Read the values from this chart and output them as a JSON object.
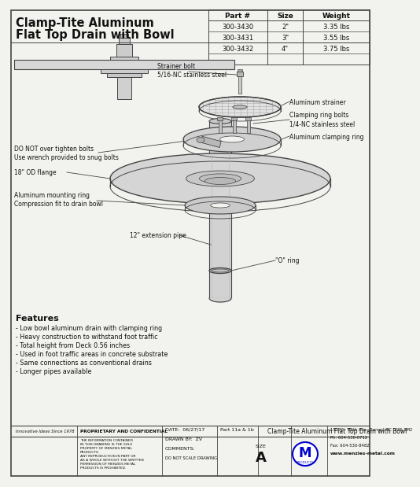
{
  "bg_color": "#f2f2ee",
  "border_color": "#333333",
  "title_line1": "Clamp-Tite Aluminum",
  "title_line2": "Flat Top Drain with Bowl",
  "table_headers": [
    "Part #",
    "Size",
    "Weight"
  ],
  "table_rows": [
    [
      "300-3430",
      "2\"",
      "3.35 lbs"
    ],
    [
      "300-3431",
      "3\"",
      "3.55 lbs"
    ],
    [
      "300-3432",
      "4\"",
      "3.75 lbs"
    ]
  ],
  "features_title": "Features",
  "features": [
    "- Low bowl aluminum drain with clamping ring",
    "- Heavy construction to withstand foot traffic",
    "- Total height from Deck 0.56 inches",
    "- Used in foot traffic areas in concrete substrate",
    "- Same connections as conventional drains",
    "- Longer pipes available"
  ],
  "label_strainer_bolt": "Strainer bolt\n5/16-NC stainless steel",
  "label_al_strainer": "Aluminum strainer",
  "label_clamp_bolts": "Clamping ring bolts\n1/4-NC stainless steel",
  "label_clamp_ring": "Aluminum clamping ring",
  "label_do_not": "DO NOT over tighten bolts\nUse wrench provided to snug bolts",
  "label_flange": "18\" OD flange",
  "label_mount_ring": "Aluminum mounting ring\nCompression fit to drain bowl",
  "label_ext_pipe": "12\" extension pipe",
  "label_o_ring": "\"O\" ring",
  "footer_left1": "Innovative Ideas Since 1978",
  "footer_conf": "PROPRIETARY AND CONFIDENTIAL",
  "footer_conf_body": "THE INFORMATION CONTAINED\nIN THIS DRAWING IS THE SOLE\nPROPERTY OF MENZIES METAL\nPRODUCTS.\nANY REPRODUCTION IN PART OR\nAS A WHOLE WITHOUT THE WRITTEN\nPERMISSION OF MENZIES METAL\nPRODUCTS IS PROHIBITED.",
  "footer_date": "DATE:  06/27/17",
  "footer_drawn": "DRAWN BY:  ZV",
  "footer_comments": "COMMENTS:",
  "footer_part": "Part 11a & 1b",
  "footer_title": "Clamp-Tite Aluminum Flat Top Drain with Bowl",
  "footer_size_label": "SIZE",
  "footer_size_val": "A",
  "footer_do_not_scale": "DO NOT SCALE DRAWING",
  "footer_address": "19370 - 80th Ave., Surrey, BC  V3S 3M2\nPh: 604-530-0712\nFax: 604-530-8482\nwww.menzies-metal.com"
}
